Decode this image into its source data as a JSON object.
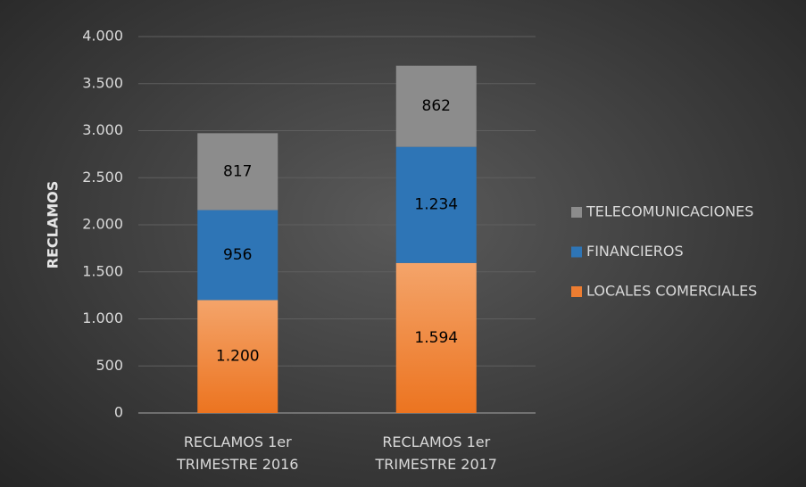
{
  "chart_data": {
    "type": "stacked_bar",
    "y_axis_label": "RECLAMOS",
    "categories": [
      "RECLAMOS 1er TRIMESTRE 2016",
      "RECLAMOS 1er TRIMESTRE 2017"
    ],
    "series": [
      {
        "name": "LOCALES COMERCIALES",
        "color": "#ed7d31",
        "values": [
          1200,
          1594
        ],
        "value_labels": [
          "1.200",
          "1.594"
        ]
      },
      {
        "name": "FINANCIEROS",
        "color": "#2e75b6",
        "values": [
          956,
          1234
        ],
        "value_labels": [
          "956",
          "1.234"
        ]
      },
      {
        "name": "TELECOMUNICACIONES",
        "color": "#8c8c8c",
        "values": [
          817,
          862
        ],
        "value_labels": [
          "817",
          "862"
        ]
      }
    ],
    "ylim": [
      0,
      4000
    ],
    "yticks": [
      0,
      500,
      {
        "value": 1000,
        "label": "1.000"
      },
      {
        "value": 1500,
        "label": "1.500"
      },
      {
        "value": 2000,
        "label": "2.000"
      },
      {
        "value": 2500,
        "label": "2.500"
      },
      {
        "value": 3000,
        "label": "3.000"
      },
      {
        "value": 3500,
        "label": "3.500"
      },
      {
        "value": 4000,
        "label": "4.000"
      }
    ],
    "grid": true,
    "legend": "right"
  }
}
